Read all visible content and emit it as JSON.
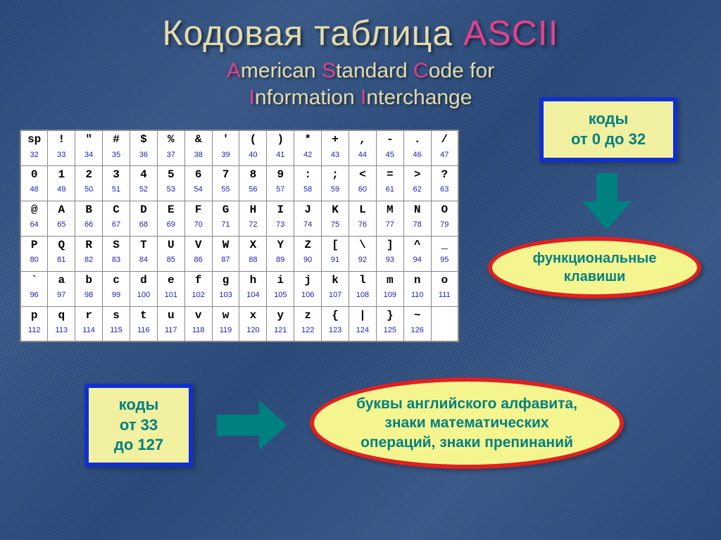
{
  "title": {
    "part1": "Кодовая таблица ",
    "part2": "ASCII"
  },
  "subtitle": {
    "line1": [
      [
        "A",
        "merican "
      ],
      [
        "S",
        "tandard "
      ],
      [
        "C",
        "ode for"
      ]
    ],
    "line2": [
      [
        "I",
        "nformation "
      ],
      [
        "I",
        "nterchange"
      ]
    ]
  },
  "box_top": {
    "line1": "коды",
    "line2": "от 0 до 32"
  },
  "box_bottom": {
    "line1": "коды",
    "line2": "от 33",
    "line3": "до 127"
  },
  "oval_small": {
    "line1": "функциональные",
    "line2": "клавиши"
  },
  "oval_large": {
    "line1": "буквы английского алфавита,",
    "line2": "знаки математических",
    "line3": "операций, знаки препинаний"
  },
  "ascii": {
    "start": 32,
    "chars": [
      "sp",
      "!",
      "\"",
      "#",
      "$",
      "%",
      "&",
      "'",
      "(",
      ")",
      "*",
      "+",
      ",",
      "-",
      ".",
      "/",
      "0",
      "1",
      "2",
      "3",
      "4",
      "5",
      "6",
      "7",
      "8",
      "9",
      ":",
      ";",
      "<",
      "=",
      ">",
      "?",
      "@",
      "A",
      "B",
      "C",
      "D",
      "E",
      "F",
      "G",
      "H",
      "I",
      "J",
      "K",
      "L",
      "M",
      "N",
      "O",
      "P",
      "Q",
      "R",
      "S",
      "T",
      "U",
      "V",
      "W",
      "X",
      "Y",
      "Z",
      "[",
      "\\",
      "]",
      "^",
      "_",
      "`",
      "a",
      "b",
      "c",
      "d",
      "e",
      "f",
      "g",
      "h",
      "i",
      "j",
      "k",
      "l",
      "m",
      "n",
      "o",
      "p",
      "q",
      "r",
      "s",
      "t",
      "u",
      "v",
      "w",
      "x",
      "y",
      "z",
      "{",
      "|",
      "}",
      "~",
      ""
    ]
  },
  "colors": {
    "title_yellow": "#e8e0b0",
    "title_pink": "#e84090",
    "box_border": "#1030d0",
    "box_fill": "#f0f0a0",
    "oval_border": "#e02020",
    "oval_fill": "#f5f590",
    "teal": "#008080",
    "code_blue": "#2020c0"
  }
}
